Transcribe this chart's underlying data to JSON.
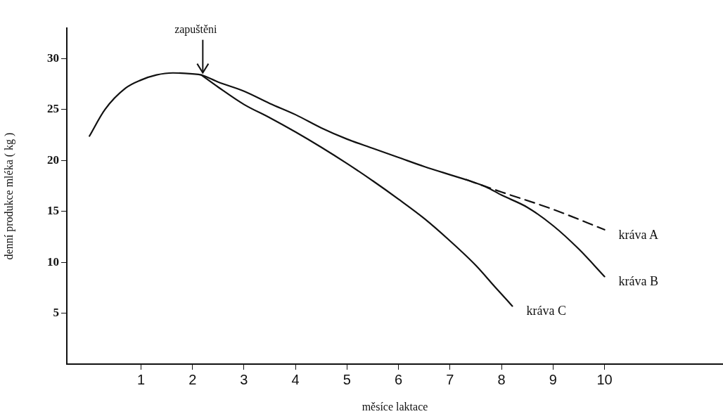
{
  "chart_data": {
    "type": "line",
    "xlabel": "měsíce laktace",
    "ylabel": "denní produkce mléka ( kg )",
    "xlim": [
      -0.44,
      12.3
    ],
    "ylim": [
      0,
      33
    ],
    "xticks": [
      1,
      2,
      3,
      4,
      5,
      6,
      7,
      8,
      9,
      10
    ],
    "yticks": [
      5,
      10,
      15,
      20,
      25,
      30
    ],
    "grid": false,
    "legend": false,
    "marker": "none",
    "annotations": [
      {
        "text": "zapuštěni",
        "x": 2.2,
        "y": 28.4
      }
    ],
    "series": [
      {
        "color": "#111111",
        "x": [
          0,
          0.3,
          0.7,
          1,
          1.3,
          1.62,
          2,
          2.17,
          2.5,
          3,
          3.5,
          4,
          4.5,
          5,
          5.5,
          6,
          6.5,
          7,
          7.32
        ],
        "values": [
          22.4,
          25,
          27.1,
          27.9,
          28.4,
          28.6,
          28.5,
          28.4,
          27.7,
          26.8,
          25.6,
          24.5,
          23.2,
          22.1,
          21.2,
          20.3,
          19.4,
          18.6,
          18.1
        ]
      },
      {
        "name": "kráva A",
        "color": "#111111",
        "line_style": "dashed",
        "x": [
          7.32,
          8,
          9,
          10
        ],
        "values": [
          18.1,
          16.9,
          15.2,
          13.2
        ]
      },
      {
        "name": "kráva B",
        "color": "#111111",
        "x": [
          7.32,
          7.7,
          8,
          8.5,
          9,
          9.5,
          10
        ],
        "values": [
          18.1,
          17.4,
          16.6,
          15.4,
          13.6,
          11.3,
          8.6
        ]
      },
      {
        "name": "kráva C",
        "color": "#111111",
        "x": [
          2.17,
          2.5,
          3,
          3.5,
          4,
          4.5,
          5,
          5.5,
          6,
          6.5,
          7,
          7.5,
          7.87,
          8.21
        ],
        "values": [
          28.4,
          27.2,
          25.5,
          24.2,
          22.8,
          21.3,
          19.7,
          18,
          16.2,
          14.3,
          12.1,
          9.7,
          7.6,
          5.7
        ]
      }
    ]
  }
}
